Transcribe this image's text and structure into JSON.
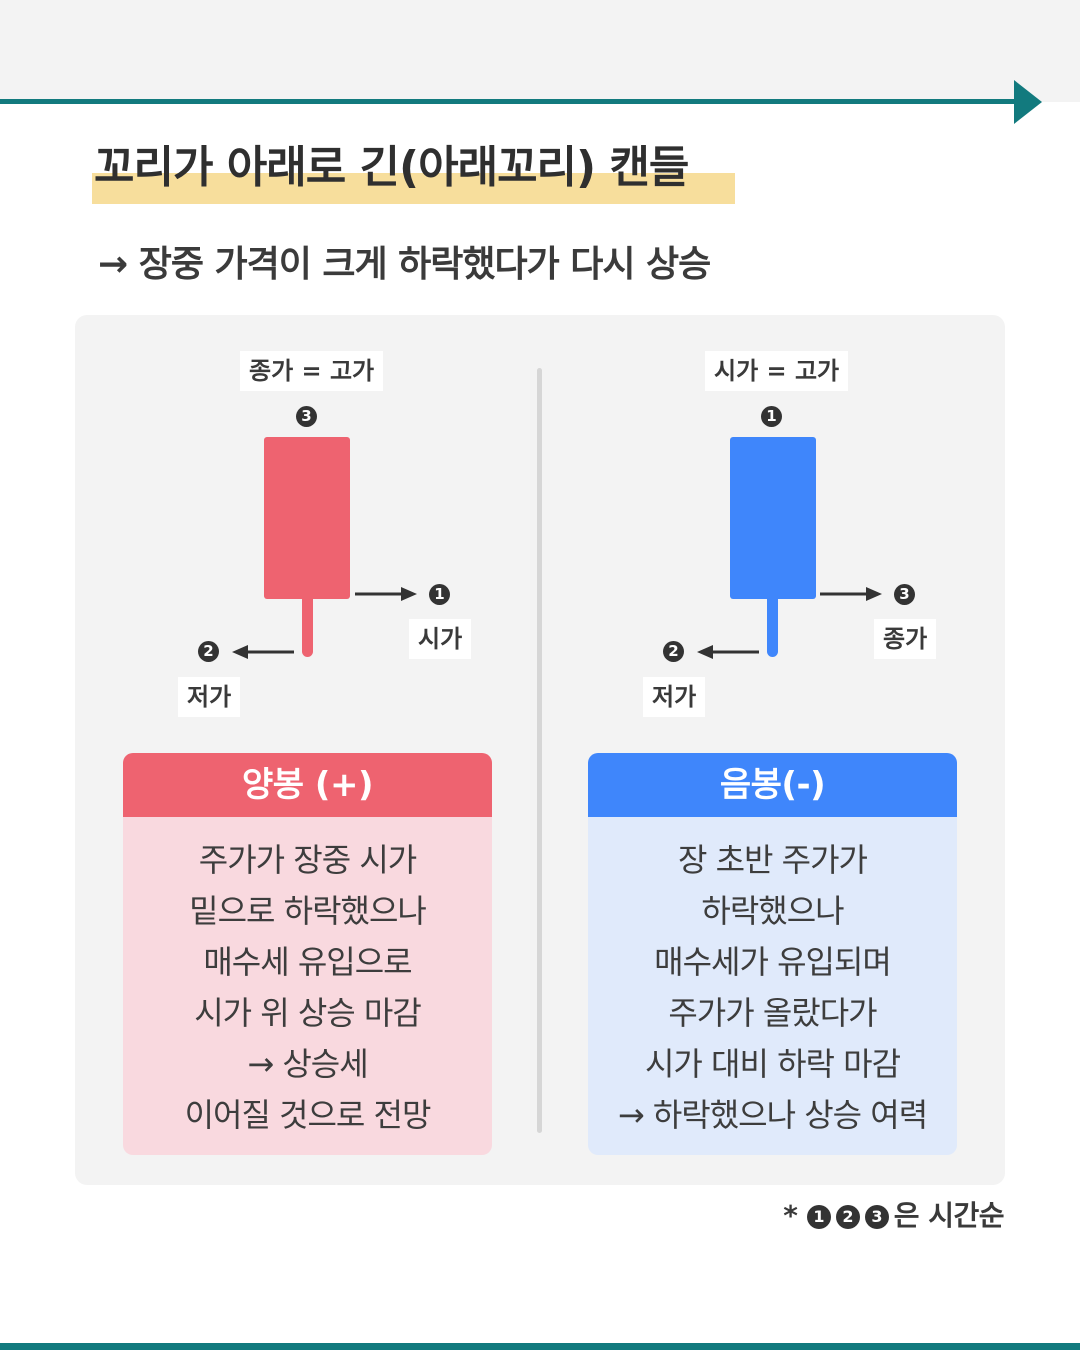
{
  "title": "꼬리가 아래로 긴(아래꼬리) 캔들",
  "subtitle": "→ 장중 가격이 크게 하락했다가 다시 상승",
  "colors": {
    "teal": "#127a7e",
    "red": "#ee6370",
    "blue": "#3f86fb",
    "highlight": "#f7de9c"
  },
  "left": {
    "top_label": "종가 = 고가",
    "top_num": "3",
    "right_num": "1",
    "right_label": "시가",
    "left_num": "2",
    "left_label": "저가",
    "card_title": "양봉 (+)",
    "card_lines": [
      "주가가 장중 시가",
      "밑으로 하락했으나",
      "매수세 유입으로",
      "시가 위 상승 마감",
      "→ 상승세",
      "이어질 것으로 전망"
    ]
  },
  "right": {
    "top_label": "시가 = 고가",
    "top_num": "1",
    "right_num": "3",
    "right_label": "종가",
    "left_num": "2",
    "left_label": "저가",
    "card_title": "음봉(-)",
    "card_lines": [
      "장 초반 주가가",
      "하락했으나",
      "매수세가 유입되며",
      "주가가 올랐다가",
      "시가 대비 하락 마감",
      "→ 하락했으나 상승 여력"
    ]
  },
  "footnote": {
    "prefix": "*",
    "nums": [
      "1",
      "2",
      "3"
    ],
    "text": "은 시간순"
  }
}
